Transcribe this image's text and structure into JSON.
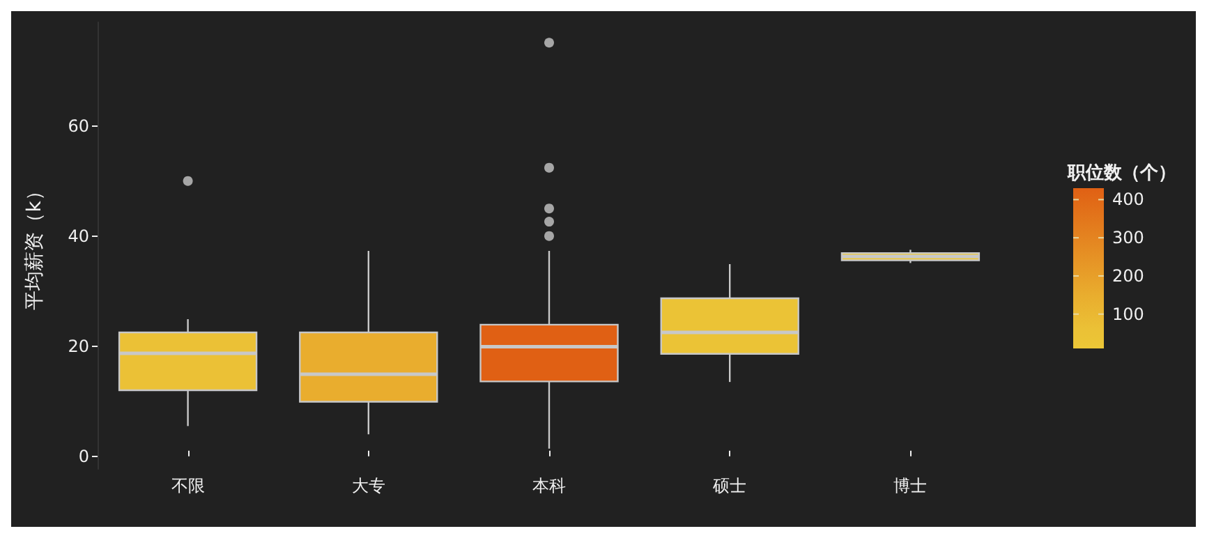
{
  "chart_data": {
    "type": "box",
    "ylabel": "平均薪资（k）",
    "clabel": "职位数（个）",
    "categories": [
      "不限",
      "大专",
      "本科",
      "硕士",
      "博士"
    ],
    "boxes": [
      {
        "low": 5.5,
        "q1": 12,
        "median": 18.7,
        "q3": 22.5,
        "high": 24.9,
        "outliers": [
          50
        ]
      },
      {
        "low": 4,
        "q1": 9.9,
        "median": 14.9,
        "q3": 22.5,
        "high": 37.3
      },
      {
        "low": 1.4,
        "q1": 13.6,
        "median": 19.9,
        "q3": 23.9,
        "high": 37.3,
        "outliers": [
          40,
          42.6,
          45,
          52.4,
          75.1
        ]
      },
      {
        "low": 13.5,
        "q1": 18.6,
        "median": 22.5,
        "q3": 28.7,
        "high": 34.9
      },
      {
        "low": 35.1,
        "q1": 35.6,
        "median": 36.3,
        "q3": 36.9,
        "high": 37.5
      }
    ],
    "colors": [
      "#ebc136",
      "#e9ad2e",
      "#e06014",
      "#ebc336",
      "#ecc737"
    ],
    "cvalues": [
      60,
      150,
      430,
      40,
      12
    ],
    "clim": [
      10,
      430
    ],
    "cticks": [
      100,
      200,
      300,
      400
    ],
    "ylim": [
      -2.3,
      78.8
    ],
    "yticks": [
      0,
      20,
      40,
      60
    ],
    "grid": false
  }
}
